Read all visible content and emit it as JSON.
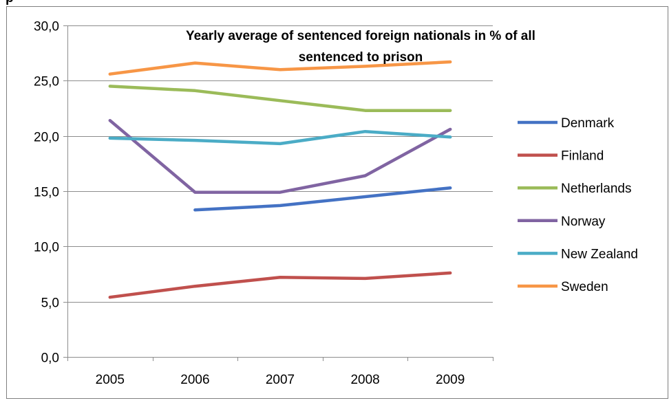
{
  "clipped_heading": "p",
  "chart_data": {
    "type": "line",
    "title_lines": [
      "Yearly average of sentenced foreign nationals in % of all",
      "sentenced to prison"
    ],
    "xlabel": "",
    "ylabel": "",
    "categories": [
      "2005",
      "2006",
      "2007",
      "2008",
      "2009"
    ],
    "y_ticks": [
      "0,0",
      "5,0",
      "10,0",
      "15,0",
      "20,0",
      "25,0",
      "30,0"
    ],
    "ylim": [
      0,
      30
    ],
    "grid": true,
    "legend_position": "right",
    "series": [
      {
        "name": "Denmark",
        "color": "#4472C4",
        "values": [
          null,
          13.3,
          13.7,
          14.5,
          15.3
        ]
      },
      {
        "name": "Finland",
        "color": "#C0504D",
        "values": [
          5.4,
          6.4,
          7.2,
          7.1,
          7.6
        ]
      },
      {
        "name": "Netherlands",
        "color": "#9BBB59",
        "values": [
          24.5,
          24.1,
          23.2,
          22.3,
          22.3
        ]
      },
      {
        "name": "Norway",
        "color": "#8064A2",
        "values": [
          21.4,
          14.9,
          14.9,
          16.4,
          20.6
        ]
      },
      {
        "name": "New Zealand",
        "color": "#4BACC6",
        "values": [
          19.8,
          19.6,
          19.3,
          20.4,
          19.9
        ]
      },
      {
        "name": "Sweden",
        "color": "#F79646",
        "values": [
          25.6,
          26.6,
          26.0,
          26.3,
          26.7
        ]
      }
    ]
  }
}
